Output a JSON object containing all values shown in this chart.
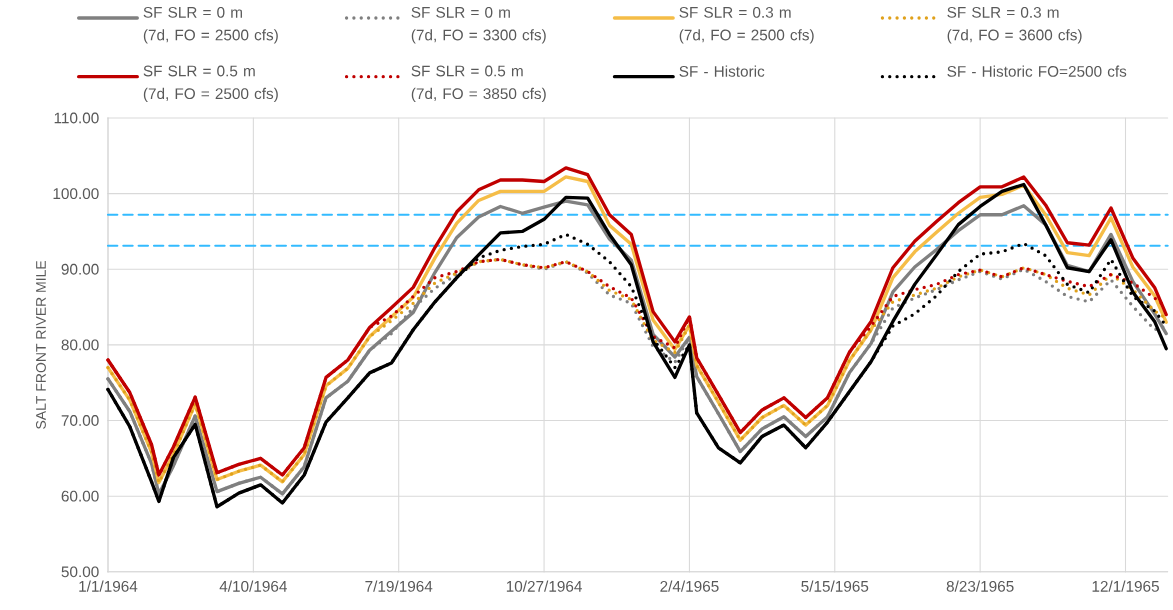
{
  "chart_data": {
    "type": "line",
    "ylabel": "SALT FRONT RIVER MILE",
    "x": [
      "1964-01-01",
      "1964-01-16",
      "1964-01-31",
      "1964-02-05",
      "1964-02-15",
      "1964-03-01",
      "1964-03-16",
      "1964-03-31",
      "1964-04-15",
      "1964-04-30",
      "1964-05-15",
      "1964-05-30",
      "1964-06-14",
      "1964-06-29",
      "1964-07-14",
      "1964-07-29",
      "1964-08-13",
      "1964-08-28",
      "1964-09-12",
      "1964-09-27",
      "1964-10-12",
      "1964-10-27",
      "1964-11-11",
      "1964-11-26",
      "1964-12-11",
      "1964-12-26",
      "1965-01-10",
      "1965-01-25",
      "1965-02-04",
      "1965-02-09",
      "1965-02-24",
      "1965-03-11",
      "1965-03-26",
      "1965-04-10",
      "1965-04-25",
      "1965-05-10",
      "1965-05-25",
      "1965-06-09",
      "1965-06-24",
      "1965-07-09",
      "1965-07-24",
      "1965-08-08",
      "1965-08-23",
      "1965-09-07",
      "1965-09-22",
      "1965-10-07",
      "1965-10-22",
      "1965-11-06",
      "1965-11-21",
      "1965-12-06",
      "1965-12-21",
      "1965-12-29"
    ],
    "series": [
      {
        "name": "SF SLR = 0 m (7d, FO = 2500 cfs)",
        "color": "#808080",
        "line_style": "solid",
        "values": [
          75.5,
          71.2,
          64.3,
          60.3,
          64.0,
          70.6,
          60.6,
          61.7,
          62.5,
          60.3,
          63.9,
          73.0,
          75.2,
          79.3,
          81.8,
          84.3,
          89.6,
          94.2,
          96.9,
          98.3,
          97.4,
          98.2,
          99.0,
          98.5,
          94.0,
          91.2,
          81.4,
          78.4,
          81.0,
          75.8,
          70.9,
          65.9,
          68.9,
          70.5,
          67.9,
          70.5,
          76.3,
          80.2,
          87.0,
          90.3,
          92.6,
          95.1,
          97.2,
          97.2,
          98.4,
          95.9,
          90.5,
          89.7,
          94.6,
          88.4,
          84.1,
          81.5
        ]
      },
      {
        "name": "SF SLR = 0 m (7d, FO = 3300 cfs)",
        "color": "#7f7f7f",
        "line_style": "dotted",
        "values": [
          75.5,
          71.2,
          64.3,
          60.3,
          64.0,
          70.6,
          60.6,
          61.7,
          62.5,
          60.3,
          63.9,
          73.0,
          75.2,
          79.3,
          81.5,
          84.9,
          87.5,
          89.3,
          91.0,
          91.3,
          90.6,
          90.0,
          91.0,
          89.5,
          86.6,
          85.5,
          79.8,
          77.7,
          81.0,
          75.8,
          70.9,
          65.9,
          68.9,
          70.5,
          67.9,
          70.5,
          76.3,
          80.2,
          84.9,
          86.2,
          87.3,
          88.6,
          89.7,
          88.7,
          90.0,
          88.4,
          86.4,
          85.7,
          88.6,
          85.1,
          82.0,
          82.5
        ]
      },
      {
        "name": "SF SLR = 0.3 m (7d, FO = 2500 cfs)",
        "color": "#f5bd47",
        "line_style": "solid",
        "values": [
          77.0,
          72.7,
          65.8,
          61.8,
          65.5,
          72.2,
          62.2,
          63.3,
          64.1,
          61.9,
          65.5,
          74.6,
          76.9,
          81.1,
          83.7,
          86.3,
          91.5,
          96.1,
          99.1,
          100.3,
          100.3,
          100.3,
          102.2,
          101.6,
          95.8,
          93.3,
          83.3,
          79.4,
          82.6,
          77.3,
          72.4,
          67.4,
          70.4,
          72.0,
          69.4,
          72.0,
          77.9,
          82.0,
          88.9,
          92.3,
          94.9,
          97.4,
          99.5,
          99.9,
          101.1,
          97.2,
          92.2,
          91.8,
          96.8,
          90.3,
          86.5,
          83.0
        ]
      },
      {
        "name": "SF SLR = 0.3 m (7d, FO = 3600 cfs)",
        "color": "#e0a11b",
        "line_style": "dotted",
        "values": [
          77.0,
          72.7,
          65.8,
          61.8,
          65.5,
          72.2,
          62.2,
          63.3,
          64.1,
          61.9,
          65.5,
          74.6,
          76.9,
          81.1,
          83.2,
          85.5,
          88.2,
          89.5,
          91.0,
          91.3,
          90.6,
          90.2,
          91.0,
          89.7,
          87.2,
          86.0,
          80.6,
          79.0,
          82.6,
          77.3,
          72.4,
          67.4,
          70.4,
          72.0,
          69.4,
          72.0,
          77.9,
          82.0,
          85.7,
          86.6,
          87.5,
          89.0,
          89.9,
          89.0,
          90.2,
          89.3,
          87.5,
          86.6,
          89.3,
          87.3,
          84.5,
          83.5
        ]
      },
      {
        "name": "SF SLR = 0.5 m (7d, FO = 2500 cfs)",
        "color": "#c00000",
        "line_style": "solid",
        "values": [
          78.0,
          73.7,
          66.8,
          62.8,
          66.5,
          73.1,
          63.1,
          64.2,
          65.0,
          62.8,
          66.4,
          75.7,
          78.0,
          82.3,
          84.9,
          87.6,
          92.9,
          97.6,
          100.5,
          101.8,
          101.8,
          101.6,
          103.4,
          102.5,
          97.2,
          94.6,
          84.4,
          80.4,
          83.7,
          78.3,
          73.4,
          68.4,
          71.4,
          73.0,
          70.4,
          73.0,
          79.0,
          83.1,
          90.2,
          93.7,
          96.3,
          98.8,
          100.9,
          100.9,
          102.2,
          98.5,
          93.5,
          93.2,
          98.1,
          91.5,
          87.6,
          84.0
        ]
      },
      {
        "name": "SF SLR = 0.5 m (7d, FO = 3850 cfs)",
        "color": "#c00000",
        "line_style": "dotted",
        "values": [
          78.0,
          73.7,
          66.8,
          62.8,
          66.5,
          73.1,
          63.1,
          64.2,
          65.0,
          62.8,
          66.4,
          75.7,
          78.0,
          82.3,
          83.8,
          86.4,
          88.9,
          89.7,
          91.0,
          91.3,
          90.6,
          90.2,
          91.0,
          89.7,
          87.7,
          86.2,
          81.1,
          79.6,
          83.7,
          78.3,
          73.4,
          68.4,
          71.4,
          73.0,
          70.4,
          73.0,
          79.0,
          82.5,
          86.4,
          87.3,
          88.0,
          89.3,
          89.9,
          89.0,
          90.2,
          89.3,
          88.4,
          87.7,
          89.3,
          88.2,
          86.2,
          85.0
        ]
      },
      {
        "name": "SF - Historic",
        "color": "#000000",
        "line_style": "solid",
        "values": [
          74.1,
          69.2,
          61.9,
          59.3,
          65.1,
          69.5,
          58.6,
          60.4,
          61.5,
          59.1,
          62.8,
          69.8,
          73.0,
          76.3,
          77.6,
          82.0,
          85.7,
          88.9,
          91.9,
          94.8,
          95.0,
          96.6,
          99.5,
          99.4,
          94.6,
          90.6,
          80.4,
          75.7,
          80.0,
          71.0,
          66.4,
          64.4,
          67.9,
          69.4,
          66.4,
          69.8,
          73.8,
          77.8,
          83.1,
          88.0,
          91.9,
          95.9,
          98.3,
          100.3,
          101.2,
          95.9,
          90.2,
          89.7,
          93.9,
          87.0,
          83.1,
          79.5
        ]
      },
      {
        "name": "SF - Historic FO=2500 cfs",
        "color": "#000000",
        "line_style": "dotted",
        "values": [
          74.1,
          69.2,
          61.9,
          59.3,
          65.1,
          69.5,
          58.6,
          60.4,
          61.5,
          59.1,
          62.8,
          69.8,
          73.0,
          76.3,
          77.6,
          82.0,
          85.7,
          88.9,
          91.5,
          92.5,
          93.0,
          93.3,
          94.6,
          93.3,
          91.0,
          87.7,
          80.8,
          77.0,
          80.0,
          71.0,
          66.4,
          64.4,
          67.9,
          69.4,
          66.4,
          69.8,
          73.8,
          77.8,
          82.5,
          84.1,
          86.5,
          89.7,
          92.0,
          92.3,
          93.4,
          91.8,
          88.0,
          86.9,
          91.3,
          86.4,
          84.5,
          82.5
        ]
      }
    ],
    "xlim": [
      "1964-01-01",
      "1965-12-30"
    ],
    "xticks": [
      {
        "value": "1964-01-01",
        "label": "1/1/1964"
      },
      {
        "value": "1964-04-10",
        "label": "4/10/1964"
      },
      {
        "value": "1964-07-19",
        "label": "7/19/1964"
      },
      {
        "value": "1964-10-27",
        "label": "10/27/1964"
      },
      {
        "value": "1965-02-04",
        "label": "2/4/1965"
      },
      {
        "value": "1965-05-15",
        "label": "5/15/1965"
      },
      {
        "value": "1965-08-23",
        "label": "8/23/1965"
      },
      {
        "value": "1965-12-01",
        "label": "12/1/1965"
      }
    ],
    "ylim": [
      50,
      110
    ],
    "yticks": [
      {
        "value": 50,
        "label": "50.00"
      },
      {
        "value": 60,
        "label": "60.00"
      },
      {
        "value": 70,
        "label": "70.00"
      },
      {
        "value": 80,
        "label": "80.00"
      },
      {
        "value": 90,
        "label": "90.00"
      },
      {
        "value": 100,
        "label": "100.00"
      },
      {
        "value": 110,
        "label": "110.00"
      }
    ],
    "ref_lines": [
      {
        "axis": "y",
        "value": 97.2,
        "color": "#33bbff",
        "line_style": "dashed"
      },
      {
        "axis": "y",
        "value": 93.1,
        "color": "#33bbff",
        "line_style": "dashed"
      }
    ],
    "grid": true,
    "legend": "top"
  }
}
